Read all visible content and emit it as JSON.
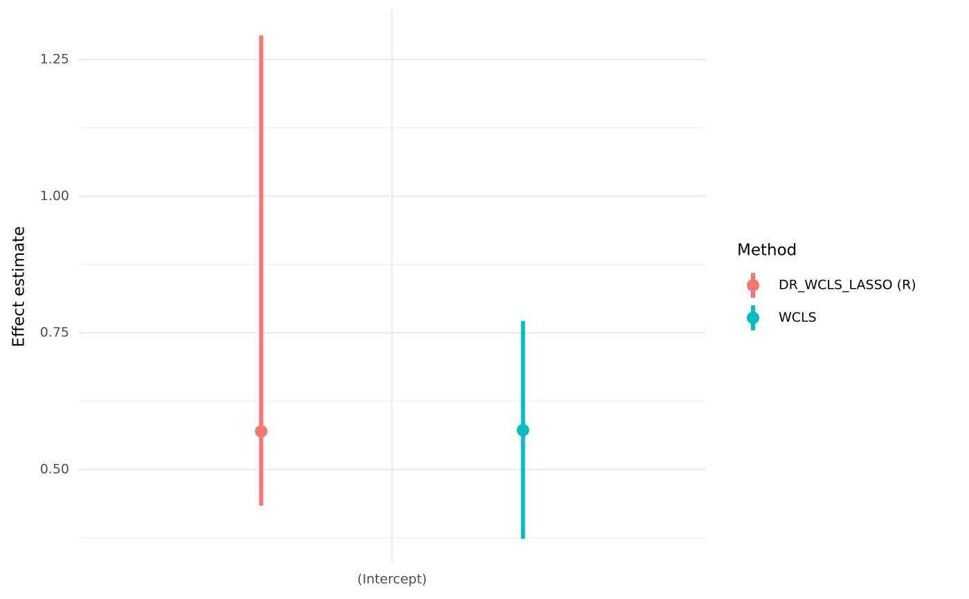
{
  "chart_data": {
    "type": "pointrange",
    "y_label": "Effect estimate",
    "categories": [
      "(Intercept)"
    ],
    "legend_title": "Method",
    "legend_position": "right",
    "series": [
      {
        "name": "DR_WCLS_LASSO (R)",
        "color": "#f8766d",
        "values": [
          0.57
        ],
        "lower": [
          0.434
        ],
        "upper": [
          1.294
        ]
      },
      {
        "name": "WCLS",
        "color": "#00bfc4",
        "values": [
          0.572
        ],
        "lower": [
          0.373
        ],
        "upper": [
          0.772
        ]
      }
    ],
    "ylim": [
      0.329,
      1.34
    ],
    "yticks": [
      {
        "value": 0.5,
        "label": "0.50"
      },
      0.75,
      {
        "value": 1,
        "label": "1.00"
      },
      1.25
    ],
    "minor_yticks": [
      0.375,
      0.625,
      0.875,
      1.125
    ],
    "grid": true
  }
}
